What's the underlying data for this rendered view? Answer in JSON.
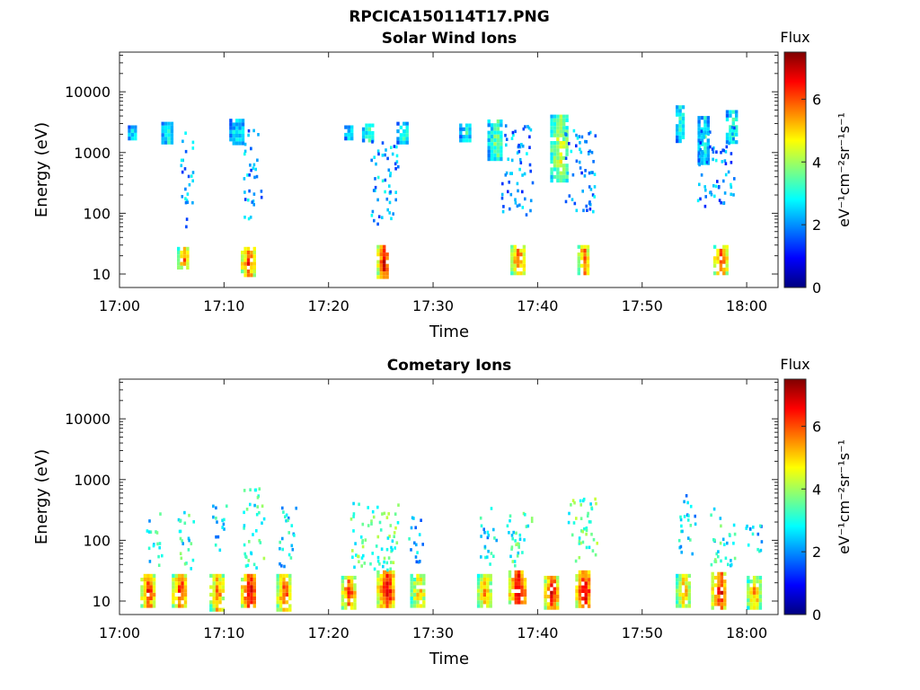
{
  "figure_title": "RPCICA150114T17.PNG",
  "colors": {
    "colormap": [
      "#00007f",
      "#0000ff",
      "#007fff",
      "#00ffff",
      "#7fff7f",
      "#ffff00",
      "#ff7f00",
      "#ff0000",
      "#7f0000"
    ]
  },
  "chart_data": [
    {
      "type": "heatmap",
      "title": "Solar Wind Ions",
      "xlabel": "Time",
      "ylabel": "Energy (eV)",
      "x_ticks": [
        "17:00",
        "17:10",
        "17:20",
        "17:30",
        "17:40",
        "17:50",
        "18:00"
      ],
      "x_range_min": [
        0,
        63
      ],
      "y_scale": "log",
      "y_ticks": [
        "10",
        "100",
        "1000",
        "10000"
      ],
      "y_range": [
        6,
        45000
      ],
      "colorbar": {
        "title": "Flux",
        "units": "eV⁻¹cm⁻²sr⁻¹s⁻¹",
        "ticks": [
          "0",
          "2",
          "4",
          "6"
        ],
        "range": [
          0,
          7.5
        ]
      },
      "clusters": [
        {
          "t_start_min": 5.5,
          "t_end_min": 6.6,
          "e_low_ev": 12,
          "e_high_ev": 28,
          "peak_flux": 5.8
        },
        {
          "t_start_min": 11.6,
          "t_end_min": 12.8,
          "e_low_ev": 10,
          "e_high_ev": 28,
          "peak_flux": 6.5
        },
        {
          "t_start_min": 24.6,
          "t_end_min": 25.7,
          "e_low_ev": 9,
          "e_high_ev": 30,
          "peak_flux": 6.8
        },
        {
          "t_start_min": 37.4,
          "t_end_min": 38.6,
          "e_low_ev": 11,
          "e_high_ev": 30,
          "peak_flux": 6.2
        },
        {
          "t_start_min": 43.8,
          "t_end_min": 44.8,
          "e_low_ev": 11,
          "e_high_ev": 30,
          "peak_flux": 6.3
        },
        {
          "t_start_min": 56.8,
          "t_end_min": 58.0,
          "e_low_ev": 11,
          "e_high_ev": 30,
          "peak_flux": 6.4
        },
        {
          "t_start_min": 0.8,
          "t_end_min": 1.5,
          "e_low_ev": 1700,
          "e_high_ev": 2800,
          "peak_flux": 3.0
        },
        {
          "t_start_min": 4.0,
          "t_end_min": 5.0,
          "e_low_ev": 1500,
          "e_high_ev": 3200,
          "peak_flux": 3.4
        },
        {
          "t_start_min": 10.5,
          "t_end_min": 11.7,
          "e_low_ev": 1500,
          "e_high_ev": 3600,
          "peak_flux": 3.0
        },
        {
          "t_start_min": 21.5,
          "t_end_min": 22.2,
          "e_low_ev": 1600,
          "e_high_ev": 2800,
          "peak_flux": 3.0
        },
        {
          "t_start_min": 23.2,
          "t_end_min": 24.2,
          "e_low_ev": 1500,
          "e_high_ev": 3000,
          "peak_flux": 3.4
        },
        {
          "t_start_min": 26.5,
          "t_end_min": 27.6,
          "e_low_ev": 1500,
          "e_high_ev": 3200,
          "peak_flux": 3.2
        },
        {
          "t_start_min": 32.5,
          "t_end_min": 33.5,
          "e_low_ev": 1500,
          "e_high_ev": 3000,
          "peak_flux": 3.2
        },
        {
          "t_start_min": 35.2,
          "t_end_min": 36.6,
          "e_low_ev": 800,
          "e_high_ev": 3500,
          "peak_flux": 3.8
        },
        {
          "t_start_min": 41.2,
          "t_end_min": 42.8,
          "e_low_ev": 350,
          "e_high_ev": 4200,
          "peak_flux": 4.6
        },
        {
          "t_start_min": 53.2,
          "t_end_min": 54.0,
          "e_low_ev": 1600,
          "e_high_ev": 6000,
          "peak_flux": 3.4
        },
        {
          "t_start_min": 55.3,
          "t_end_min": 56.3,
          "e_low_ev": 700,
          "e_high_ev": 4000,
          "peak_flux": 3.2
        },
        {
          "t_start_min": 58.0,
          "t_end_min": 59.0,
          "e_low_ev": 1500,
          "e_high_ev": 5000,
          "peak_flux": 3.6
        }
      ],
      "trails": [
        {
          "t_start_min": 5.8,
          "t_end_min": 7.0,
          "e_low_ev": 60,
          "e_high_ev": 2500,
          "peak_flux": 2.2
        },
        {
          "t_start_min": 11.8,
          "t_end_min": 13.5,
          "e_low_ev": 80,
          "e_high_ev": 2500,
          "peak_flux": 2.2
        },
        {
          "t_start_min": 24.0,
          "t_end_min": 26.6,
          "e_low_ev": 70,
          "e_high_ev": 2000,
          "peak_flux": 2.2
        },
        {
          "t_start_min": 36.5,
          "t_end_min": 39.5,
          "e_low_ev": 100,
          "e_high_ev": 3000,
          "peak_flux": 2.0
        },
        {
          "t_start_min": 42.5,
          "t_end_min": 45.5,
          "e_low_ev": 100,
          "e_high_ev": 2500,
          "peak_flux": 2.0
        },
        {
          "t_start_min": 55.0,
          "t_end_min": 58.8,
          "e_low_ev": 120,
          "e_high_ev": 3000,
          "peak_flux": 2.0
        }
      ]
    },
    {
      "type": "heatmap",
      "title": "Cometary Ions",
      "xlabel": "Time",
      "ylabel": "Energy (eV)",
      "x_ticks": [
        "17:00",
        "17:10",
        "17:20",
        "17:30",
        "17:40",
        "17:50",
        "18:00"
      ],
      "x_range_min": [
        0,
        63
      ],
      "y_scale": "log",
      "y_ticks": [
        "10",
        "100",
        "1000",
        "10000"
      ],
      "y_range": [
        6,
        45000
      ],
      "colorbar": {
        "title": "Flux",
        "units": "eV⁻¹cm⁻²sr⁻¹s⁻¹",
        "ticks": [
          "0",
          "2",
          "4",
          "6"
        ],
        "range": [
          0,
          7.5
        ]
      },
      "clusters": [
        {
          "t_start_min": 2.0,
          "t_end_min": 3.2,
          "e_low_ev": 8,
          "e_high_ev": 28,
          "peak_flux": 6.6
        },
        {
          "t_start_min": 5.0,
          "t_end_min": 6.4,
          "e_low_ev": 8,
          "e_high_ev": 28,
          "peak_flux": 6.5
        },
        {
          "t_start_min": 8.6,
          "t_end_min": 9.8,
          "e_low_ev": 7,
          "e_high_ev": 28,
          "peak_flux": 6.0
        },
        {
          "t_start_min": 11.6,
          "t_end_min": 13.0,
          "e_low_ev": 8,
          "e_high_ev": 28,
          "peak_flux": 7.2
        },
        {
          "t_start_min": 15.0,
          "t_end_min": 16.2,
          "e_low_ev": 7,
          "e_high_ev": 28,
          "peak_flux": 6.3
        },
        {
          "t_start_min": 21.2,
          "t_end_min": 22.4,
          "e_low_ev": 8,
          "e_high_ev": 26,
          "peak_flux": 6.4
        },
        {
          "t_start_min": 24.6,
          "t_end_min": 26.2,
          "e_low_ev": 8,
          "e_high_ev": 32,
          "peak_flux": 7.0
        },
        {
          "t_start_min": 27.8,
          "t_end_min": 29.2,
          "e_low_ev": 8,
          "e_high_ev": 28,
          "peak_flux": 5.2
        },
        {
          "t_start_min": 34.2,
          "t_end_min": 35.4,
          "e_low_ev": 8,
          "e_high_ev": 28,
          "peak_flux": 5.6
        },
        {
          "t_start_min": 37.2,
          "t_end_min": 38.8,
          "e_low_ev": 9,
          "e_high_ev": 32,
          "peak_flux": 7.0
        },
        {
          "t_start_min": 40.6,
          "t_end_min": 41.8,
          "e_low_ev": 8,
          "e_high_ev": 26,
          "peak_flux": 6.8
        },
        {
          "t_start_min": 43.6,
          "t_end_min": 45.0,
          "e_low_ev": 8,
          "e_high_ev": 32,
          "peak_flux": 7.0
        },
        {
          "t_start_min": 53.2,
          "t_end_min": 54.4,
          "e_low_ev": 8,
          "e_high_ev": 28,
          "peak_flux": 5.6
        },
        {
          "t_start_min": 56.6,
          "t_end_min": 58.0,
          "e_low_ev": 8,
          "e_high_ev": 30,
          "peak_flux": 6.8
        },
        {
          "t_start_min": 60.0,
          "t_end_min": 61.2,
          "e_low_ev": 8,
          "e_high_ev": 26,
          "peak_flux": 5.6
        }
      ],
      "trails": [
        {
          "t_start_min": 2.5,
          "t_end_min": 4.0,
          "e_low_ev": 40,
          "e_high_ev": 300,
          "peak_flux": 2.8
        },
        {
          "t_start_min": 5.5,
          "t_end_min": 7.0,
          "e_low_ev": 35,
          "e_high_ev": 450,
          "peak_flux": 3.0
        },
        {
          "t_start_min": 8.8,
          "t_end_min": 10.2,
          "e_low_ev": 60,
          "e_high_ev": 400,
          "peak_flux": 2.6
        },
        {
          "t_start_min": 11.8,
          "t_end_min": 13.8,
          "e_low_ev": 35,
          "e_high_ev": 800,
          "peak_flux": 3.2
        },
        {
          "t_start_min": 15.2,
          "t_end_min": 16.8,
          "e_low_ev": 35,
          "e_high_ev": 450,
          "peak_flux": 2.6
        },
        {
          "t_start_min": 22.0,
          "t_end_min": 26.6,
          "e_low_ev": 30,
          "e_high_ev": 450,
          "peak_flux": 3.4
        },
        {
          "t_start_min": 27.5,
          "t_end_min": 29.0,
          "e_low_ev": 40,
          "e_high_ev": 250,
          "peak_flux": 2.4
        },
        {
          "t_start_min": 34.4,
          "t_end_min": 36.0,
          "e_low_ev": 40,
          "e_high_ev": 400,
          "peak_flux": 2.6
        },
        {
          "t_start_min": 37.0,
          "t_end_min": 39.8,
          "e_low_ev": 40,
          "e_high_ev": 300,
          "peak_flux": 3.2
        },
        {
          "t_start_min": 42.8,
          "t_end_min": 45.6,
          "e_low_ev": 40,
          "e_high_ev": 550,
          "peak_flux": 3.4
        },
        {
          "t_start_min": 53.4,
          "t_end_min": 55.0,
          "e_low_ev": 50,
          "e_high_ev": 600,
          "peak_flux": 2.6
        },
        {
          "t_start_min": 56.4,
          "t_end_min": 58.8,
          "e_low_ev": 40,
          "e_high_ev": 350,
          "peak_flux": 3.0
        },
        {
          "t_start_min": 59.5,
          "t_end_min": 61.5,
          "e_low_ev": 60,
          "e_high_ev": 200,
          "peak_flux": 2.4
        }
      ]
    }
  ]
}
